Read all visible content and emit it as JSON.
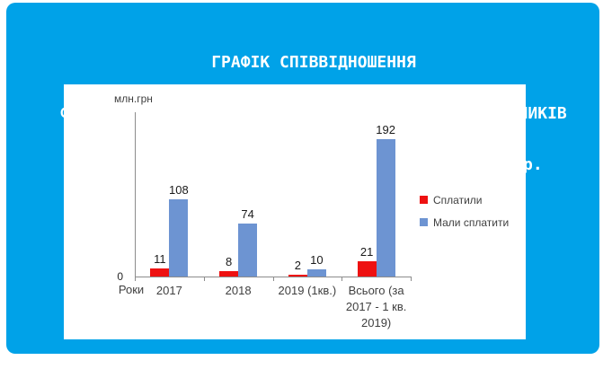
{
  "title": {
    "lines": [
      "ГРАФІК СПІВВІДНОШЕННЯ",
      "ФАКТИЧНИХ ТА ОЧІКУВАНИХ ПАЙОВИХ ВНЕСКІВ ЗАБУДОВНИКІВ",
      "ДО БЮДЖЕТУ ІРПЕНЯ в 2017 - перший пол. 2019 рр."
    ]
  },
  "colors": {
    "page_background": "#FFFFFF",
    "card_background": "#00A2E8",
    "title_text": "#FFFFFF",
    "panel_background": "#FFFFFF",
    "axis": "#8C8C8C",
    "paid_red": "#EE1111",
    "expected_blue": "#6D94D2"
  },
  "chart_data": {
    "type": "bar",
    "title": "",
    "unit_label": "млн.грн",
    "xlabel": "Роки",
    "ylabel": "",
    "y_zero_label": "0",
    "ylim": [
      0,
      229
    ],
    "grid": false,
    "legend_position": "right",
    "categories": [
      "2017",
      "2018",
      "2019 (1кв.)",
      "Всього (за 2017 - 1 кв. 2019)"
    ],
    "category_display_lines": [
      [
        "2017"
      ],
      [
        "2018"
      ],
      [
        "2019 (1кв.)"
      ],
      [
        "Всього (за",
        "2017 - 1 кв.",
        "2019)"
      ]
    ],
    "series": [
      {
        "key": "paid",
        "name": "Сплатили",
        "color": "#EE1111",
        "values": [
          11,
          8,
          2,
          21
        ]
      },
      {
        "key": "expected",
        "name": "Мали сплатити",
        "color": "#6D94D2",
        "values": [
          108,
          74,
          10,
          192
        ]
      }
    ]
  }
}
